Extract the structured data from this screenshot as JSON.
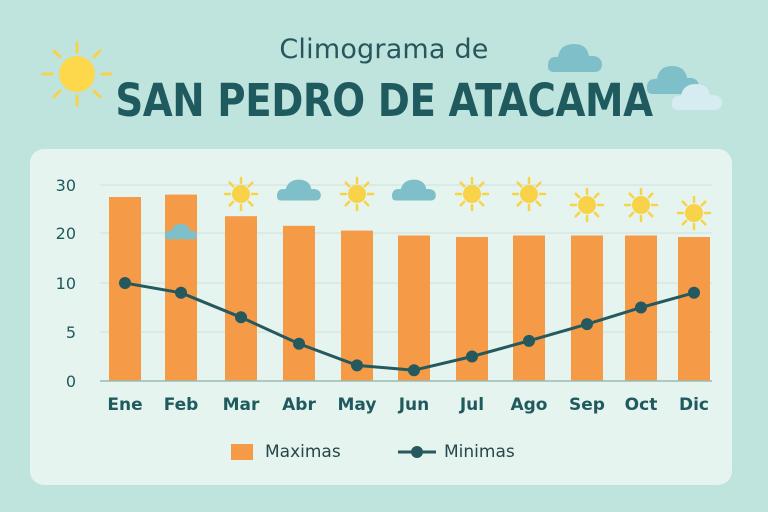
{
  "header": {
    "subtitle": "Climograma de",
    "title": "SAN PEDRO DE ATACAMA"
  },
  "colors": {
    "background": "#bfe3dd",
    "panel": "#e6f4ef",
    "bar": "#f59a47",
    "line": "#25595d",
    "text": "#1f5a5f",
    "sun": "#f8d34a",
    "cloud": "#7fbfc9"
  },
  "icons": {
    "header_left": "sun-icon",
    "header_right": [
      "cloud-icon",
      "cloud-icon",
      "cloud-icon"
    ],
    "monthly": [
      "none",
      "cloud-icon",
      "sun-icon",
      "cloud-icon",
      "sun-icon",
      "cloud-icon",
      "sun-icon",
      "sun-icon",
      "sun-icon",
      "sun-icon",
      "sun-icon"
    ]
  },
  "chart_data": {
    "type": "bar",
    "categories": [
      "Ene",
      "Feb",
      "Mar",
      "Abr",
      "May",
      "Jun",
      "Jul",
      "Ago",
      "Sep",
      "Oct",
      "Dic"
    ],
    "y_tick_labels": [
      "30",
      "20",
      "10",
      "5",
      "0"
    ],
    "series": [
      {
        "name": "Maximas",
        "type": "bar",
        "values": [
          27.5,
          28,
          23.5,
          21.5,
          20.5,
          19.5,
          19.2,
          19.5,
          19.5,
          19.5,
          19.2
        ]
      },
      {
        "name": "Minimas",
        "type": "line",
        "values": [
          10,
          9,
          6.5,
          3.8,
          1.6,
          1.1,
          2.5,
          4.1,
          5.8,
          7.5,
          9
        ]
      }
    ],
    "legend": {
      "position": "bottom",
      "labels": [
        "Maximas",
        "Minimas"
      ]
    },
    "grid": true
  }
}
